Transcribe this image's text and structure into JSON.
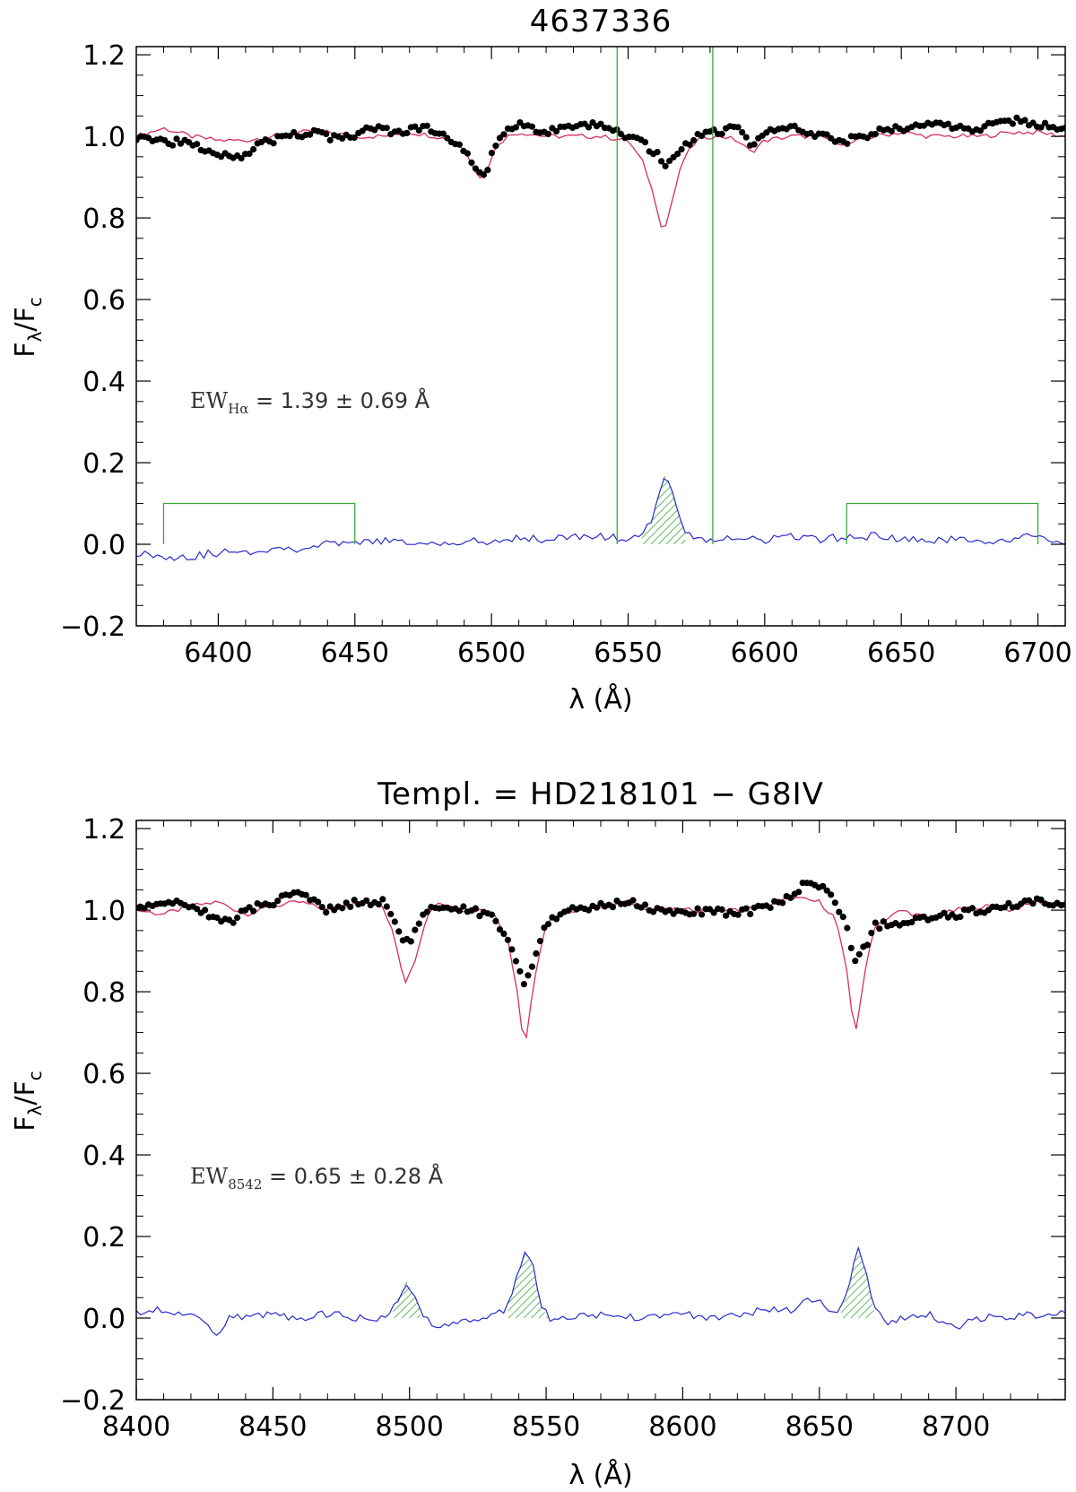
{
  "colors": {
    "data_points": "#000000",
    "template": "#d6305a",
    "residual": "#2a2ad0",
    "windows": "#3aaa3a",
    "frame": "#000000"
  },
  "chart_data": [
    {
      "type": "line",
      "title": "4637336",
      "xlabel": "λ (Å)",
      "ylabel": {
        "main": "F",
        "sub1": "λ",
        "slash": "/F",
        "sub2": "c"
      },
      "xlim": [
        6370,
        6710
      ],
      "ylim": [
        -0.2,
        1.22
      ],
      "xticks": [
        6400,
        6450,
        6500,
        6550,
        6600,
        6650,
        6700
      ],
      "yticks": [
        -0.2,
        0.0,
        0.2,
        0.4,
        0.6,
        0.8,
        1.0,
        1.2
      ],
      "ytick_labels": [
        "−0.2",
        "0.0",
        "0.2",
        "0.4",
        "0.6",
        "0.8",
        "1.0",
        "1.2"
      ],
      "xtick_labels": [
        "6400",
        "6450",
        "6500",
        "6550",
        "6600",
        "6650",
        "6700"
      ],
      "annotation": {
        "prefix": "EW",
        "sub": "Hα",
        "rest": " =  1.39  ± 0.69  Å"
      },
      "line_window": [
        6546,
        6581
      ],
      "continuum_windows": [
        [
          6380,
          6450
        ],
        [
          6630,
          6700
        ]
      ],
      "bracket_height": 0.1,
      "observed": {
        "x": [
          6370,
          6380,
          6390,
          6400,
          6408,
          6415,
          6425,
          6435,
          6445,
          6455,
          6465,
          6475,
          6480,
          6485,
          6490,
          6493,
          6496,
          6499,
          6502,
          6506,
          6512,
          6520,
          6530,
          6540,
          6550,
          6556,
          6560,
          6563,
          6566,
          6570,
          6575,
          6580,
          6590,
          6595,
          6600,
          6610,
          6620,
          6630,
          6640,
          6650,
          6660,
          6670,
          6680,
          6690,
          6700,
          6710
        ],
        "y": [
          1.0,
          0.99,
          0.98,
          0.96,
          0.95,
          0.98,
          1.0,
          1.01,
          0.99,
          1.02,
          1.01,
          1.02,
          1.01,
          0.99,
          0.97,
          0.93,
          0.9,
          0.93,
          0.99,
          1.02,
          1.03,
          1.01,
          1.02,
          1.03,
          1.0,
          0.98,
          0.96,
          0.93,
          0.94,
          0.97,
          1.0,
          1.01,
          1.02,
          0.98,
          1.01,
          1.02,
          1.0,
          0.99,
          1.01,
          1.02,
          1.03,
          1.02,
          1.02,
          1.04,
          1.03,
          1.02
        ]
      },
      "template": {
        "x": [
          6370,
          6380,
          6390,
          6400,
          6410,
          6420,
          6430,
          6440,
          6450,
          6460,
          6470,
          6480,
          6485,
          6490,
          6493,
          6496,
          6499,
          6502,
          6506,
          6510,
          6520,
          6530,
          6540,
          6550,
          6556,
          6560,
          6563,
          6566,
          6570,
          6575,
          6580,
          6585,
          6590,
          6595,
          6600,
          6610,
          6620,
          6630,
          6640,
          6650,
          6660,
          6670,
          6680,
          6690,
          6700,
          6710
        ],
        "y": [
          1.0,
          1.02,
          1.0,
          0.99,
          0.99,
          1.0,
          1.01,
          1.01,
          1.0,
          1.0,
          1.01,
          1.0,
          0.99,
          0.97,
          0.93,
          0.9,
          0.93,
          0.98,
          1.0,
          1.01,
          1.0,
          1.0,
          1.0,
          0.99,
          0.93,
          0.84,
          0.76,
          0.84,
          0.94,
          0.99,
          1.0,
          1.0,
          0.99,
          0.96,
          0.99,
          1.0,
          1.0,
          0.98,
          1.0,
          1.01,
          1.0,
          1.0,
          1.0,
          1.01,
          1.01,
          1.0
        ]
      },
      "residual": {
        "x": [
          6370,
          6380,
          6390,
          6400,
          6410,
          6420,
          6430,
          6440,
          6450,
          6460,
          6470,
          6480,
          6490,
          6500,
          6510,
          6520,
          6530,
          6540,
          6550,
          6555,
          6558,
          6561,
          6563,
          6565,
          6568,
          6571,
          6575,
          6580,
          6590,
          6600,
          6610,
          6620,
          6630,
          6640,
          6650,
          6660,
          6670,
          6680,
          6690,
          6700,
          6710
        ],
        "y": [
          -0.02,
          -0.03,
          -0.03,
          -0.02,
          -0.02,
          -0.01,
          -0.01,
          0.0,
          0.0,
          0.01,
          0.0,
          0.0,
          0.01,
          0.0,
          0.02,
          0.01,
          0.02,
          0.02,
          0.01,
          0.02,
          0.05,
          0.11,
          0.17,
          0.16,
          0.09,
          0.03,
          0.01,
          0.01,
          0.02,
          0.01,
          0.02,
          0.01,
          0.02,
          0.02,
          0.01,
          0.01,
          0.01,
          0.01,
          0.01,
          0.02,
          0.0
        ]
      },
      "hatched_regions": [
        [
          6555,
          6571
        ]
      ]
    },
    {
      "type": "line",
      "title": "Templ. = HD218101 − G8IV",
      "xlabel": "λ (Å)",
      "ylabel": {
        "main": "F",
        "sub1": "λ",
        "slash": "/F",
        "sub2": "c"
      },
      "xlim": [
        8400,
        8740
      ],
      "ylim": [
        -0.2,
        1.22
      ],
      "xticks": [
        8400,
        8450,
        8500,
        8550,
        8600,
        8650,
        8700
      ],
      "yticks": [
        -0.2,
        0.0,
        0.2,
        0.4,
        0.6,
        0.8,
        1.0,
        1.2
      ],
      "ytick_labels": [
        "−0.2",
        "0.0",
        "0.2",
        "0.4",
        "0.6",
        "0.8",
        "1.0",
        "1.2"
      ],
      "xtick_labels": [
        "8400",
        "8450",
        "8500",
        "8550",
        "8600",
        "8650",
        "8700"
      ],
      "annotation": {
        "prefix": "EW",
        "sub": "8542",
        "rest": " =  0.65  ± 0.28  Å"
      },
      "line_window": null,
      "continuum_windows": [],
      "bracket_height": 0.1,
      "observed": {
        "x": [
          8400,
          8410,
          8420,
          8430,
          8435,
          8440,
          8450,
          8460,
          8470,
          8480,
          8490,
          8495,
          8498,
          8501,
          8505,
          8510,
          8520,
          8530,
          8536,
          8540,
          8542,
          8545,
          8550,
          8560,
          8570,
          8580,
          8590,
          8600,
          8610,
          8620,
          8630,
          8640,
          8645,
          8650,
          8655,
          8660,
          8663,
          8666,
          8670,
          8680,
          8690,
          8700,
          8710,
          8720,
          8730,
          8740
        ],
        "y": [
          1.0,
          1.02,
          1.01,
          0.98,
          0.97,
          1.0,
          1.02,
          1.04,
          1.0,
          1.02,
          1.02,
          0.97,
          0.92,
          0.93,
          0.99,
          1.01,
          1.0,
          0.99,
          0.93,
          0.85,
          0.81,
          0.86,
          0.97,
          1.0,
          1.01,
          1.02,
          1.0,
          0.99,
          1.0,
          0.99,
          1.01,
          1.03,
          1.07,
          1.06,
          1.03,
          0.97,
          0.87,
          0.9,
          0.96,
          0.97,
          0.98,
          0.99,
          1.0,
          1.01,
          1.02,
          1.01
        ]
      },
      "template": {
        "x": [
          8400,
          8410,
          8420,
          8430,
          8440,
          8450,
          8460,
          8470,
          8480,
          8490,
          8494,
          8497,
          8499,
          8502,
          8506,
          8510,
          8520,
          8530,
          8536,
          8540,
          8542,
          8545,
          8550,
          8560,
          8570,
          8580,
          8590,
          8600,
          8610,
          8620,
          8630,
          8640,
          8650,
          8656,
          8660,
          8663,
          8666,
          8670,
          8680,
          8690,
          8700,
          8710,
          8720,
          8730,
          8740
        ],
        "y": [
          1.0,
          0.99,
          1.01,
          1.02,
          0.99,
          1.01,
          1.02,
          1.0,
          1.02,
          1.01,
          0.95,
          0.86,
          0.82,
          0.88,
          0.98,
          1.02,
          1.0,
          1.0,
          0.93,
          0.78,
          0.65,
          0.8,
          0.97,
          1.0,
          1.01,
          1.02,
          1.0,
          1.0,
          1.0,
          1.0,
          1.01,
          1.03,
          1.02,
          0.98,
          0.85,
          0.69,
          0.82,
          0.96,
          1.0,
          0.98,
          1.0,
          1.01,
          1.0,
          1.02,
          1.01
        ]
      },
      "residual": {
        "x": [
          8400,
          8410,
          8420,
          8425,
          8430,
          8435,
          8440,
          8450,
          8460,
          8470,
          8480,
          8490,
          8494,
          8497,
          8499,
          8502,
          8505,
          8510,
          8520,
          8530,
          8535,
          8538,
          8542,
          8545,
          8548,
          8552,
          8560,
          8570,
          8580,
          8590,
          8600,
          8610,
          8620,
          8630,
          8640,
          8645,
          8650,
          8655,
          8658,
          8661,
          8664,
          8667,
          8670,
          8675,
          8680,
          8690,
          8700,
          8710,
          8720,
          8730,
          8740
        ],
        "y": [
          0.01,
          0.02,
          0.01,
          0.0,
          -0.05,
          0.01,
          0.0,
          0.01,
          0.0,
          0.01,
          0.0,
          0.0,
          0.02,
          0.07,
          0.09,
          0.05,
          0.0,
          -0.02,
          0.0,
          0.0,
          0.02,
          0.07,
          0.16,
          0.13,
          0.03,
          -0.01,
          0.0,
          0.01,
          0.0,
          0.01,
          0.01,
          0.0,
          0.01,
          0.02,
          0.02,
          0.04,
          0.05,
          0.01,
          0.02,
          0.08,
          0.17,
          0.11,
          0.02,
          -0.01,
          0.0,
          0.01,
          -0.02,
          0.0,
          0.0,
          0.01,
          0.02
        ]
      },
      "hatched_regions": [
        [
          8494,
          8504
        ],
        [
          8536,
          8551
        ],
        [
          8658,
          8670
        ]
      ]
    }
  ]
}
